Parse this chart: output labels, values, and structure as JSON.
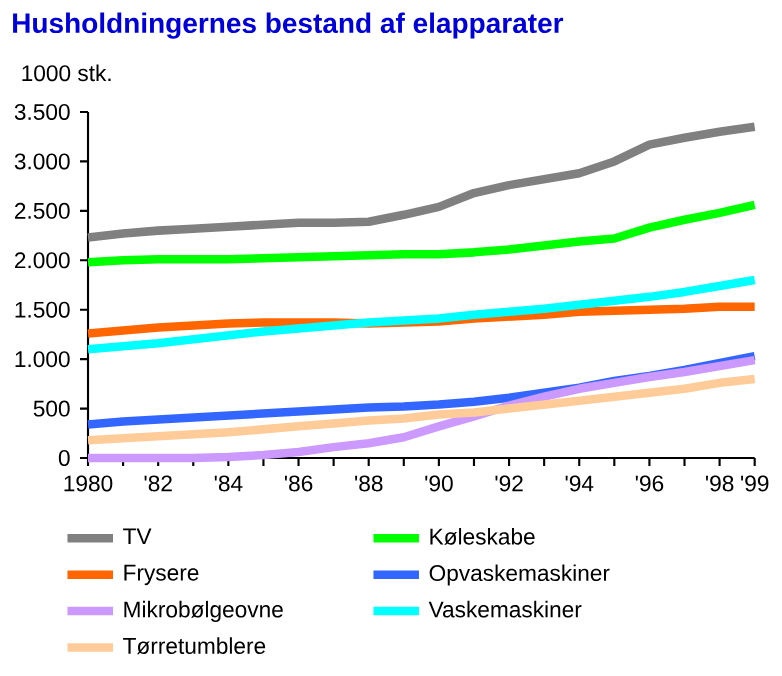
{
  "chart_data": {
    "type": "line",
    "title": "Husholdningernes bestand af elapparater",
    "ylabel": "1000 stk.",
    "x": [
      1980,
      1981,
      1982,
      1983,
      1984,
      1985,
      1986,
      1987,
      1988,
      1989,
      1990,
      1991,
      1992,
      1993,
      1994,
      1995,
      1996,
      1997,
      1998,
      1999
    ],
    "xlim": [
      1980,
      1999
    ],
    "xticks": [
      1980,
      {
        "value": 1981,
        "label": null
      },
      {
        "value": 1982,
        "label": "'82"
      },
      {
        "value": 1983,
        "label": null
      },
      {
        "value": 1984,
        "label": "'84"
      },
      {
        "value": 1985,
        "label": null
      },
      {
        "value": 1986,
        "label": "'86"
      },
      {
        "value": 1987,
        "label": null
      },
      {
        "value": 1988,
        "label": "'88"
      },
      {
        "value": 1989,
        "label": null
      },
      {
        "value": 1990,
        "label": "'90"
      },
      {
        "value": 1991,
        "label": null
      },
      {
        "value": 1992,
        "label": "'92"
      },
      {
        "value": 1993,
        "label": null
      },
      {
        "value": 1994,
        "label": "'94"
      },
      {
        "value": 1995,
        "label": null
      },
      {
        "value": 1996,
        "label": "'96"
      },
      {
        "value": 1997,
        "label": null
      },
      {
        "value": 1998,
        "label": "'98"
      },
      {
        "value": 1999,
        "label": "'99"
      }
    ],
    "ylim": [
      0,
      3500
    ],
    "yticks": [
      0,
      500,
      {
        "value": 1000,
        "label": "1.000"
      },
      {
        "value": 1500,
        "label": "1.500"
      },
      {
        "value": 2000,
        "label": "2.000"
      },
      {
        "value": 2500,
        "label": "2.500"
      },
      {
        "value": 3000,
        "label": "3.000"
      },
      {
        "value": 3500,
        "label": "3.500"
      }
    ],
    "series": [
      {
        "name": "TV",
        "color": "#808080",
        "values": [
          2230,
          2270,
          2300,
          2320,
          2340,
          2360,
          2380,
          2380,
          2390,
          2460,
          2540,
          2680,
          2760,
          2820,
          2880,
          3000,
          3170,
          3240,
          3300,
          3350
        ]
      },
      {
        "name": "Køleskabe",
        "color": "#00ff00",
        "values": [
          1980,
          2000,
          2010,
          2010,
          2010,
          2020,
          2030,
          2040,
          2050,
          2060,
          2060,
          2080,
          2110,
          2150,
          2190,
          2220,
          2330,
          2410,
          2480,
          2560
        ]
      },
      {
        "name": "Frysere",
        "color": "#ff6600",
        "values": [
          1260,
          1290,
          1320,
          1340,
          1360,
          1370,
          1370,
          1370,
          1360,
          1370,
          1380,
          1410,
          1430,
          1450,
          1480,
          1490,
          1500,
          1510,
          1530,
          1530
        ]
      },
      {
        "name": "Opvaskemaskiner",
        "color": "#3366ff",
        "values": [
          340,
          370,
          390,
          410,
          430,
          450,
          470,
          490,
          510,
          520,
          540,
          570,
          610,
          660,
          710,
          780,
          830,
          890,
          960,
          1030
        ]
      },
      {
        "name": "Mikrobølgeovne",
        "color": "#cc99ff",
        "values": [
          0,
          0,
          0,
          0,
          10,
          30,
          60,
          110,
          150,
          210,
          320,
          420,
          530,
          620,
          700,
          760,
          820,
          870,
          930,
          990
        ]
      },
      {
        "name": "Vaskemaskiner",
        "color": "#00ffff",
        "values": [
          1100,
          1130,
          1160,
          1200,
          1240,
          1280,
          1310,
          1340,
          1370,
          1390,
          1410,
          1450,
          1480,
          1510,
          1550,
          1590,
          1630,
          1680,
          1740,
          1800
        ]
      },
      {
        "name": "Tørretumblere",
        "color": "#ffcc99",
        "values": [
          180,
          200,
          220,
          240,
          260,
          290,
          320,
          350,
          380,
          400,
          440,
          460,
          500,
          540,
          580,
          620,
          660,
          700,
          760,
          800
        ]
      }
    ],
    "legend": "bottom",
    "grid": false,
    "marker": "none",
    "line_style": "solid"
  }
}
